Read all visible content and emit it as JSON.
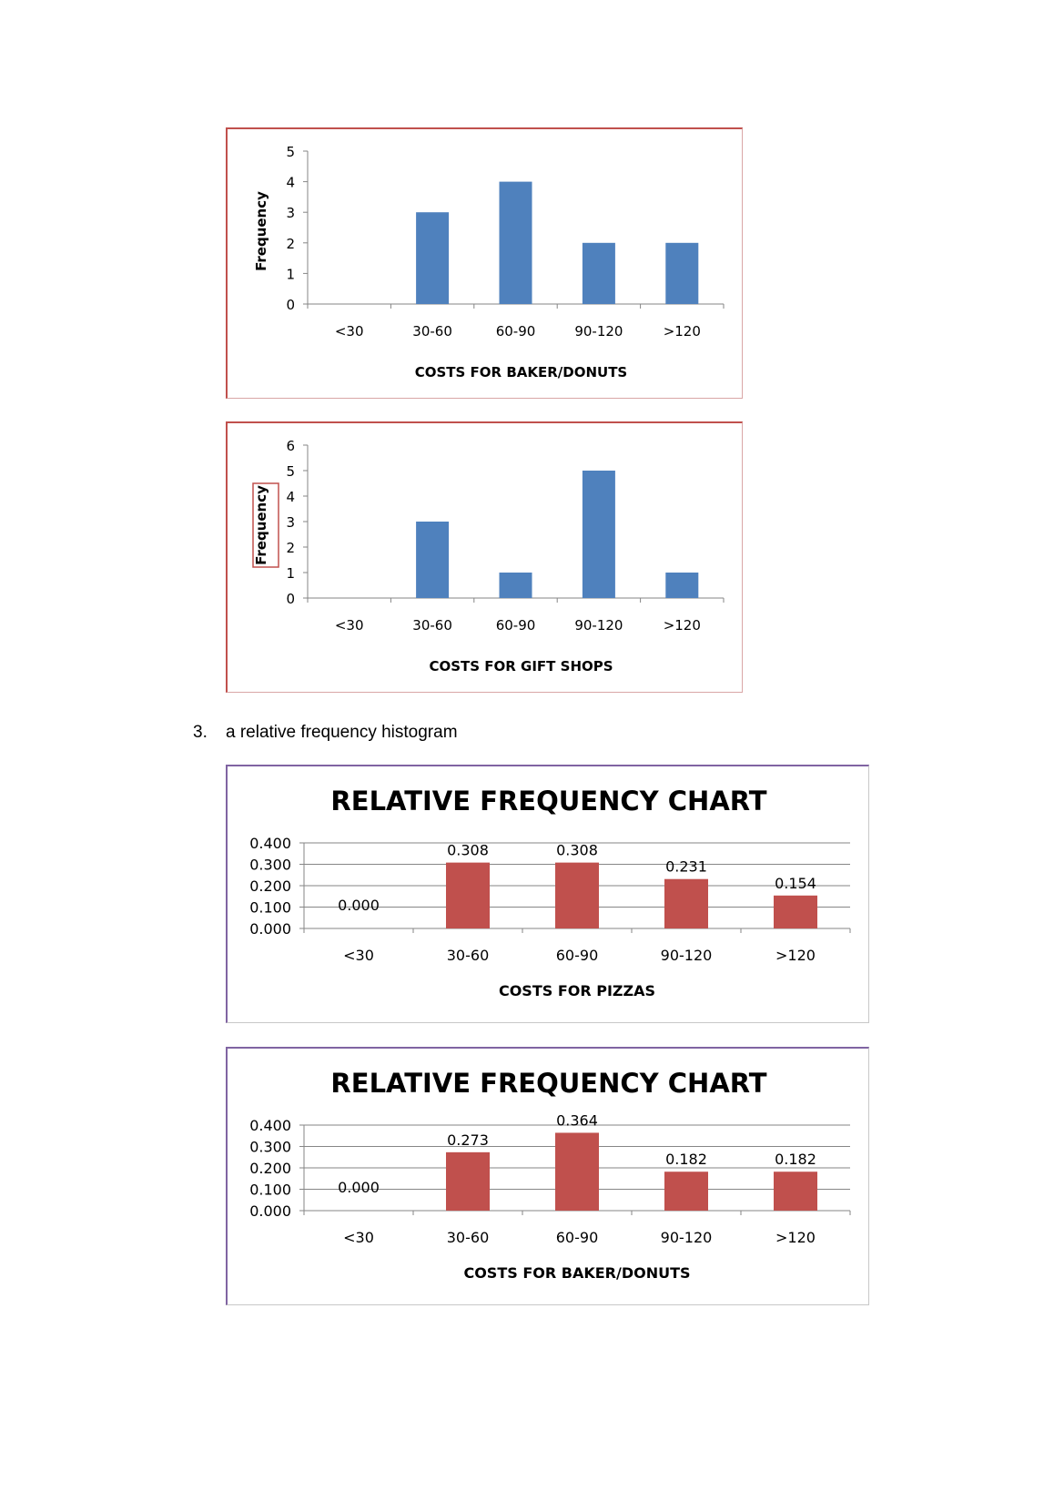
{
  "section": {
    "number": "3.",
    "text": "a relative frequency histogram"
  },
  "colors": {
    "freq_bar": "#4f81bd",
    "rel_bar": "#c0504d",
    "freq_border": "#c0504d",
    "rel_border": "#8064a2"
  },
  "chart_data": [
    {
      "type": "bar",
      "title": "",
      "xlabel": "COSTS FOR BAKER/DONUTS",
      "ylabel": "Frequency",
      "categories": [
        "<30",
        "30-60",
        "60-90",
        "90-120",
        ">120"
      ],
      "values": [
        0,
        3,
        4,
        2,
        2
      ],
      "yticks": [
        "0",
        "1",
        "2",
        "3",
        "4",
        "5"
      ],
      "ylim": [
        0,
        5
      ],
      "grid": false,
      "data_labels": false
    },
    {
      "type": "bar",
      "title": "",
      "xlabel": "COSTS FOR GIFT SHOPS",
      "ylabel": "Frequency",
      "categories": [
        "<30",
        "30-60",
        "60-90",
        "90-120",
        ">120"
      ],
      "values": [
        0,
        3,
        1,
        5,
        1
      ],
      "yticks": [
        "0",
        "1",
        "2",
        "3",
        "4",
        "5",
        "6"
      ],
      "ylim": [
        0,
        6
      ],
      "grid": false,
      "data_labels": false,
      "ylabel_boxed": true
    },
    {
      "type": "bar",
      "title": "RELATIVE FREQUENCY CHART",
      "xlabel": "COSTS FOR PIZZAS",
      "ylabel": "",
      "categories": [
        "<30",
        "30-60",
        "60-90",
        "90-120",
        ">120"
      ],
      "values": [
        0.0,
        0.308,
        0.308,
        0.231,
        0.154
      ],
      "value_labels": [
        "0.000",
        "0.308",
        "0.308",
        "0.231",
        "0.154"
      ],
      "yticks": [
        "0.000",
        "0.100",
        "0.200",
        "0.300",
        "0.400"
      ],
      "ylim": [
        0,
        0.4
      ],
      "grid": true,
      "data_labels": true
    },
    {
      "type": "bar",
      "title": "RELATIVE FREQUENCY CHART",
      "xlabel": "COSTS FOR BAKER/DONUTS",
      "ylabel": "",
      "categories": [
        "<30",
        "30-60",
        "60-90",
        "90-120",
        ">120"
      ],
      "values": [
        0.0,
        0.273,
        0.364,
        0.182,
        0.182
      ],
      "value_labels": [
        "0.000",
        "0.273",
        "0.364",
        "0.182",
        "0.182"
      ],
      "yticks": [
        "0.000",
        "0.100",
        "0.200",
        "0.300",
        "0.400"
      ],
      "ylim": [
        0,
        0.4
      ],
      "grid": true,
      "data_labels": true
    }
  ]
}
